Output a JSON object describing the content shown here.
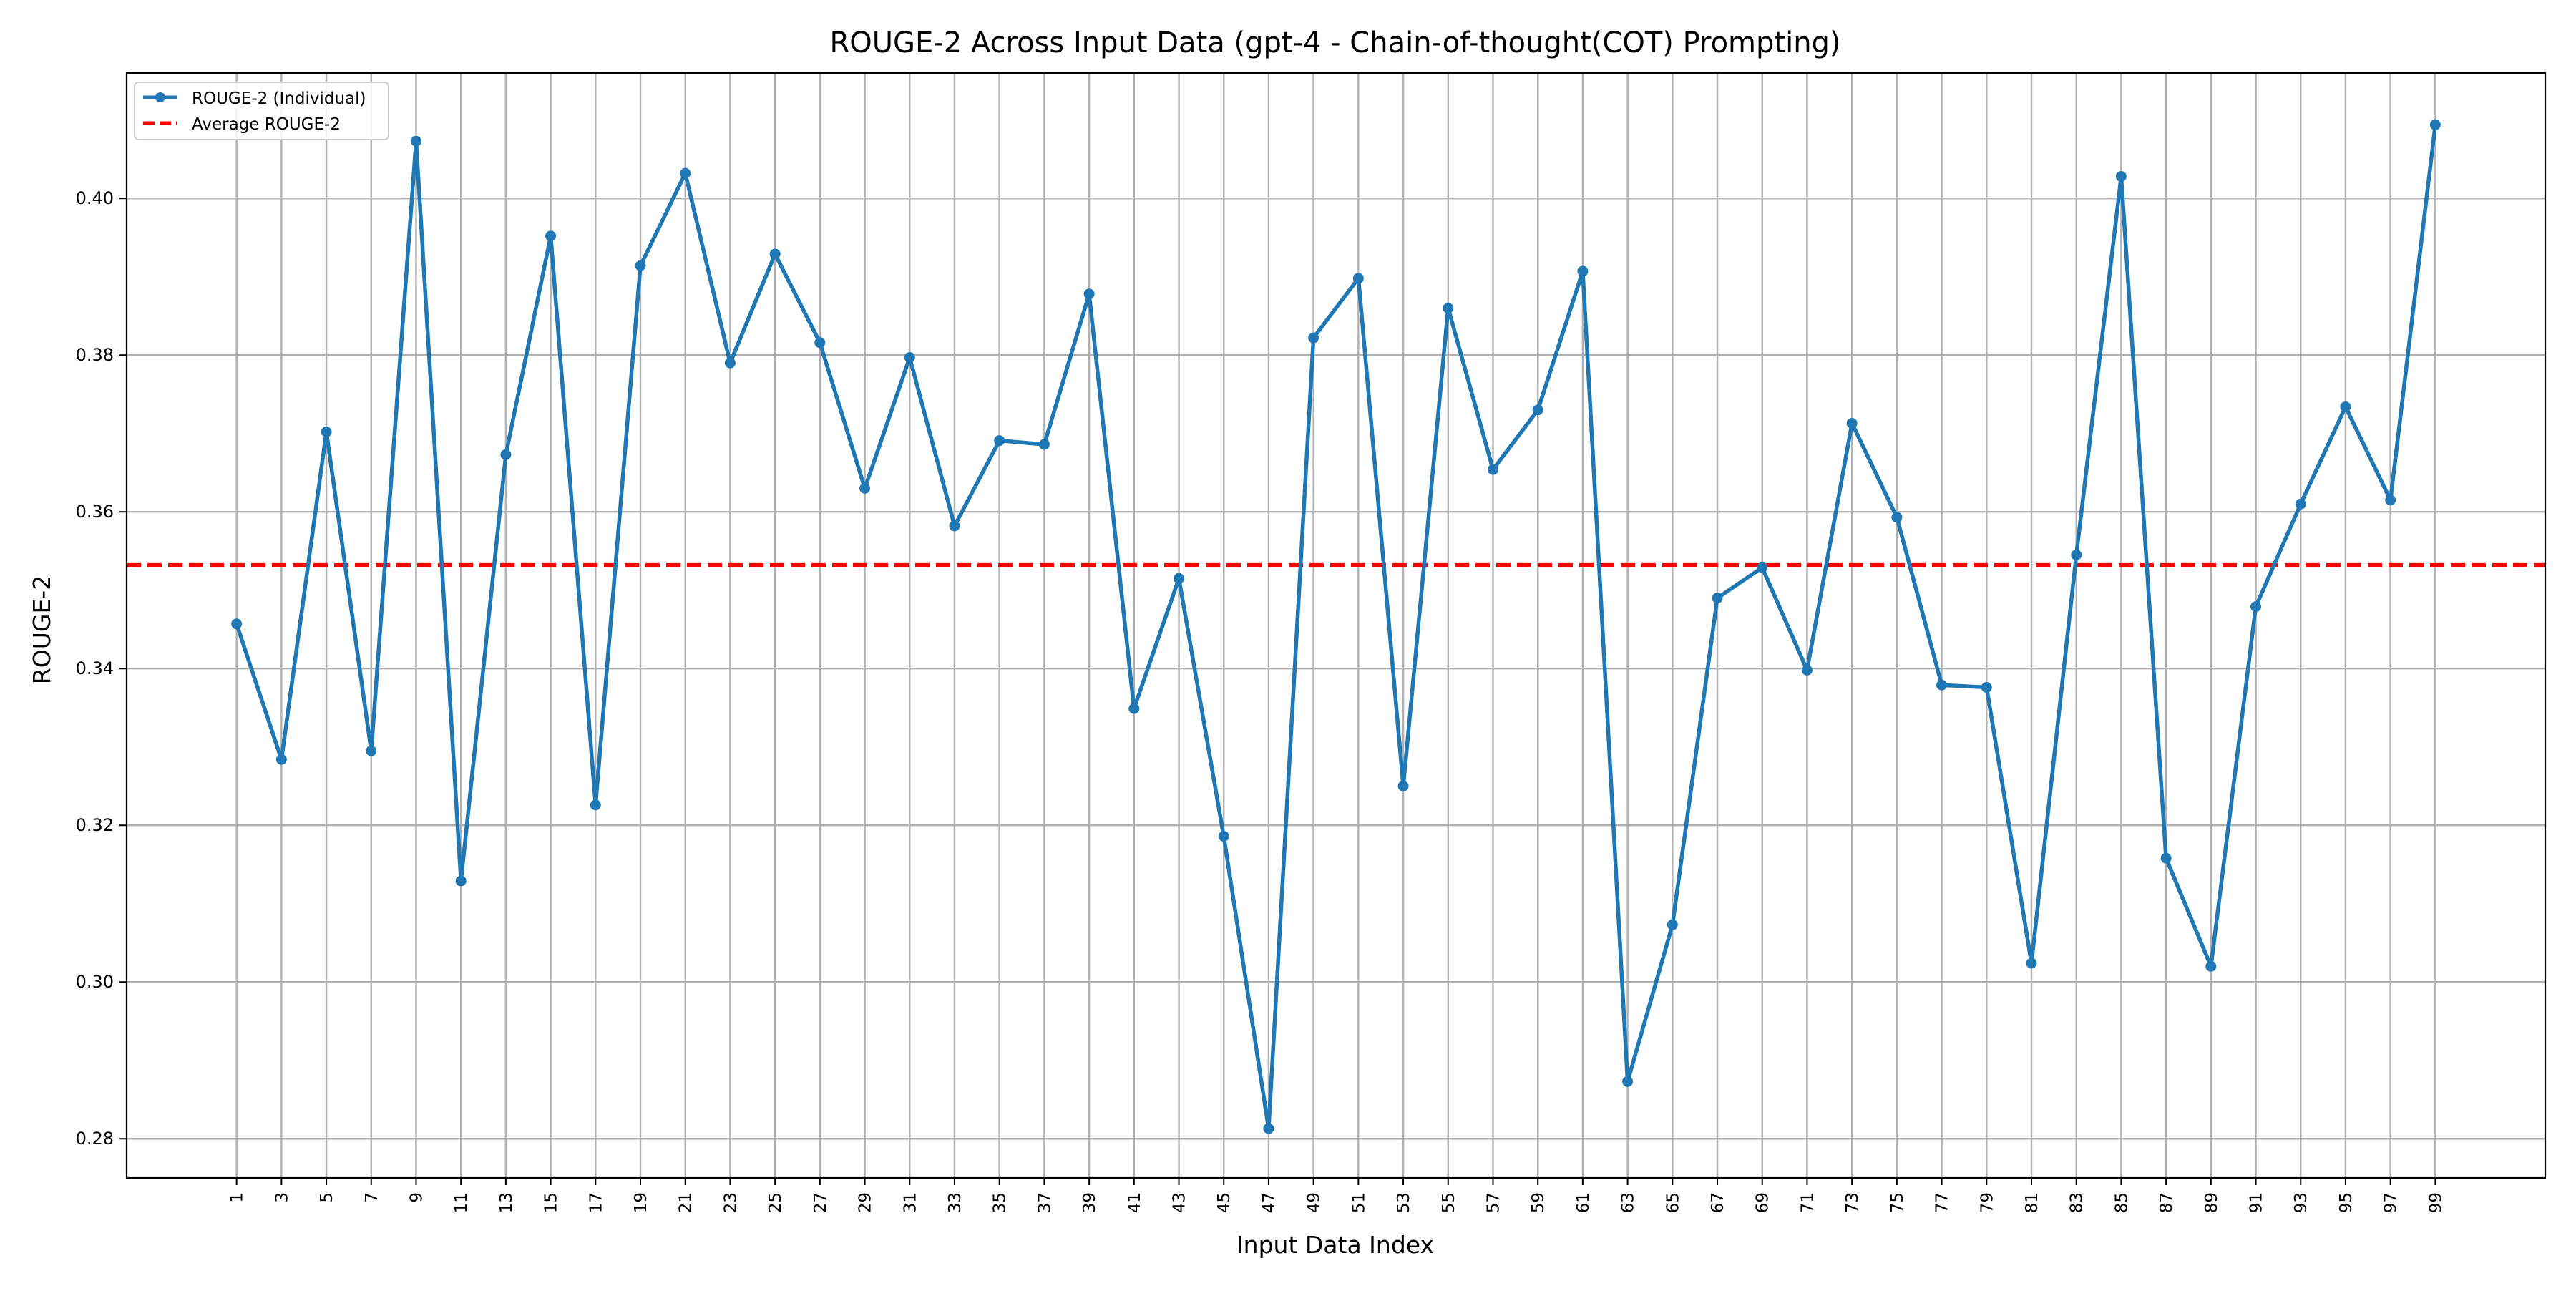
{
  "chart_data": {
    "type": "line",
    "title": "ROUGE-2 Across Input Data (gpt-4 - Chain-of-thought(COT) Prompting)",
    "xlabel": "Input Data Index",
    "ylabel": "ROUGE-2",
    "x": [
      1,
      3,
      5,
      7,
      9,
      11,
      13,
      15,
      17,
      19,
      21,
      23,
      25,
      27,
      29,
      31,
      33,
      35,
      37,
      39,
      41,
      43,
      45,
      47,
      49,
      51,
      53,
      55,
      57,
      59,
      61,
      63,
      65,
      67,
      69,
      71,
      73,
      75,
      77,
      79,
      81,
      83,
      85,
      87,
      89,
      91,
      93,
      95,
      97,
      99
    ],
    "xticks": [
      "1",
      "3",
      "5",
      "7",
      "9",
      "11",
      "13",
      "15",
      "17",
      "19",
      "21",
      "23",
      "25",
      "27",
      "29",
      "31",
      "33",
      "35",
      "37",
      "39",
      "41",
      "43",
      "45",
      "47",
      "49",
      "51",
      "53",
      "55",
      "57",
      "59",
      "61",
      "63",
      "65",
      "67",
      "69",
      "71",
      "73",
      "75",
      "77",
      "79",
      "81",
      "83",
      "85",
      "87",
      "89",
      "91",
      "93",
      "95",
      "97",
      "99"
    ],
    "xlim": [
      -3.9,
      103.9
    ],
    "ylim": [
      0.275,
      0.416
    ],
    "yticks": [
      0.28,
      0.3,
      0.32,
      0.34,
      0.36,
      0.38,
      0.4
    ],
    "ytick_labels": [
      "0.28",
      "0.30",
      "0.32",
      "0.34",
      "0.36",
      "0.38",
      "0.40"
    ],
    "grid": true,
    "legend_position": "upper-left",
    "series": [
      {
        "name": "ROUGE-2 (Individual)",
        "color": "#1f77b4",
        "values": [
          0.3457,
          0.3284,
          0.3702,
          0.3295,
          0.4073,
          0.3129,
          0.3673,
          0.3952,
          0.3226,
          0.3914,
          0.4032,
          0.379,
          0.3929,
          0.3816,
          0.363,
          0.3797,
          0.3582,
          0.3691,
          0.3686,
          0.3878,
          0.3349,
          0.3515,
          0.3186,
          0.2813,
          0.3822,
          0.3898,
          0.325,
          0.386,
          0.3654,
          0.373,
          0.3907,
          0.2873,
          0.3073,
          0.349,
          0.3529,
          0.3398,
          0.3713,
          0.3593,
          0.3379,
          0.3376,
          0.3024,
          0.3545,
          0.4028,
          0.3158,
          0.302,
          0.3479,
          0.361,
          0.3734,
          0.3615,
          0.4094
        ]
      },
      {
        "name": "Average ROUGE-2",
        "color": "#ff0000",
        "value": 0.3532
      }
    ]
  }
}
